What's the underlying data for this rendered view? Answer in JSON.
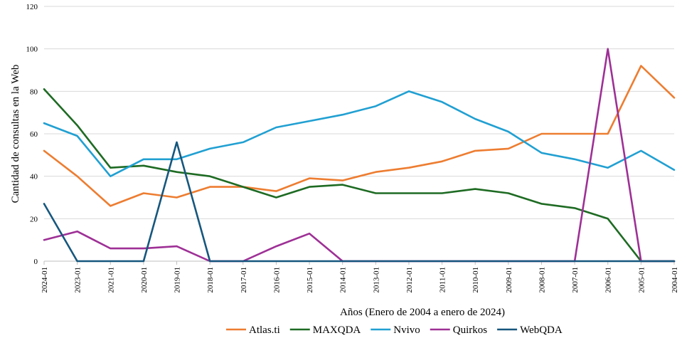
{
  "chart_data": {
    "type": "line",
    "title": "",
    "xlabel": "Años (Enero de 2004 a enero de 2024)",
    "ylabel": "Cantidad de consultas en la Web",
    "ylim": [
      0,
      120
    ],
    "yticks": [
      0,
      20,
      40,
      60,
      80,
      100,
      120
    ],
    "grid": true,
    "legend_position": "bottom",
    "categories": [
      "2024-01",
      "2023-01",
      "2021-01",
      "2020-01",
      "2019-01",
      "2018-01",
      "2017-01",
      "2016-01",
      "2015-01",
      "2014-01",
      "2013-01",
      "2012-01",
      "2011-01",
      "2010-01",
      "2009-01",
      "2008-01",
      "2007-01",
      "2006-01",
      "2005-01",
      "2004-01"
    ],
    "series": [
      {
        "name": "Atlas.ti",
        "color": "#ED7D31",
        "values": [
          52,
          40,
          26,
          32,
          30,
          35,
          35,
          33,
          39,
          38,
          42,
          44,
          47,
          52,
          53,
          60,
          60,
          60,
          92,
          77
        ]
      },
      {
        "name": "MAXQDA",
        "color": "#1E6B23",
        "values": [
          81,
          64,
          44,
          45,
          42,
          40,
          35,
          30,
          35,
          36,
          32,
          32,
          32,
          34,
          32,
          27,
          25,
          20,
          0,
          0
        ]
      },
      {
        "name": "Nvivo",
        "color": "#21A0D2",
        "values": [
          65,
          59,
          40,
          48,
          48,
          53,
          56,
          63,
          66,
          69,
          73,
          80,
          75,
          67,
          61,
          51,
          48,
          44,
          52,
          43
        ]
      },
      {
        "name": "Quirkos",
        "color": "#9E3096",
        "values": [
          10,
          14,
          6,
          6,
          7,
          0,
          0,
          7,
          13,
          0,
          0,
          0,
          0,
          0,
          0,
          0,
          0,
          100,
          0,
          0
        ]
      },
      {
        "name": "WebQDA",
        "color": "#16577E",
        "values": [
          27,
          0,
          0,
          0,
          56,
          0,
          0,
          0,
          0,
          0,
          0,
          0,
          0,
          0,
          0,
          0,
          0,
          0,
          0,
          0
        ]
      }
    ]
  }
}
